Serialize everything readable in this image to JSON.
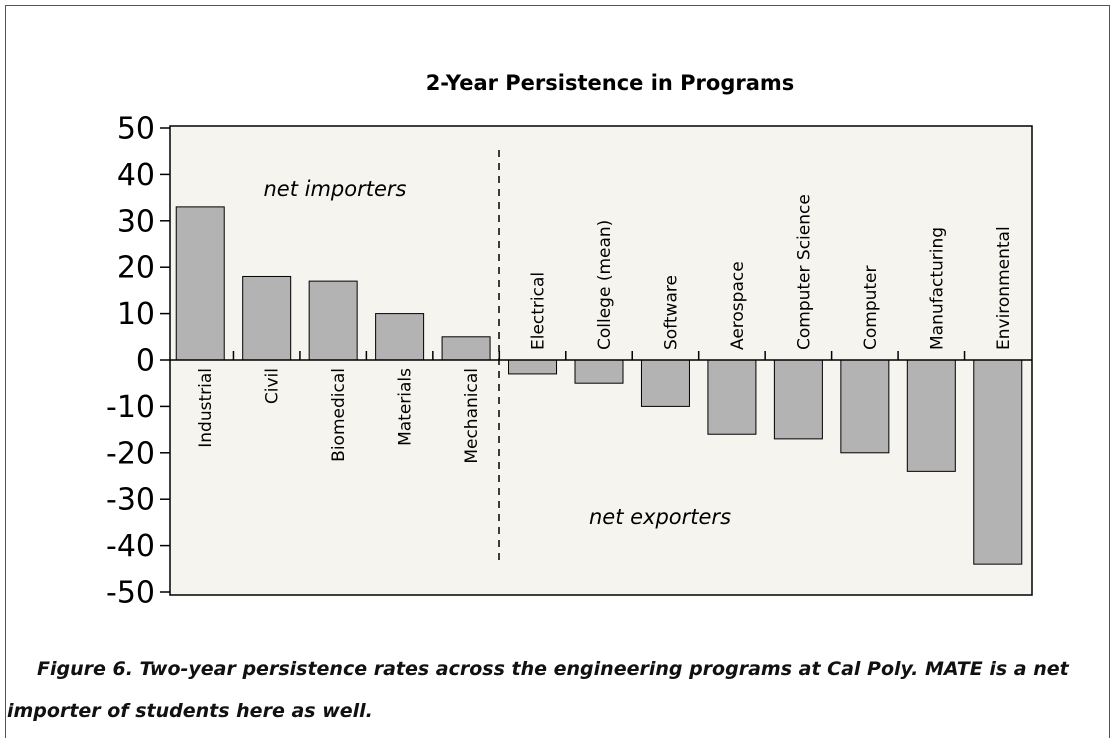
{
  "chart_data": {
    "type": "bar",
    "title": "2-Year Persistence in Programs",
    "categories": [
      "Industrial",
      "Civil",
      "Biomedical",
      "Materials",
      "Mechanical",
      "Electrical",
      "College (mean)",
      "Software",
      "Aerospace",
      "Computer Science",
      "Computer",
      "Manufacturing",
      "Environmental"
    ],
    "values": [
      33,
      18,
      17,
      10,
      5,
      -3,
      -5,
      -10,
      -16,
      -17,
      -20,
      -24,
      -44
    ],
    "color": "#b3b3b3",
    "ylim": [
      -50,
      50
    ],
    "yticks": [
      -50,
      -40,
      -30,
      -20,
      -10,
      0,
      10,
      20,
      30,
      40,
      50
    ],
    "annotations": [
      "net importers",
      "net exporters"
    ]
  },
  "caption": "Figure 6. Two-year persistence rates across the engineering programs at Cal Poly. MATE is a net importer of students here as well."
}
